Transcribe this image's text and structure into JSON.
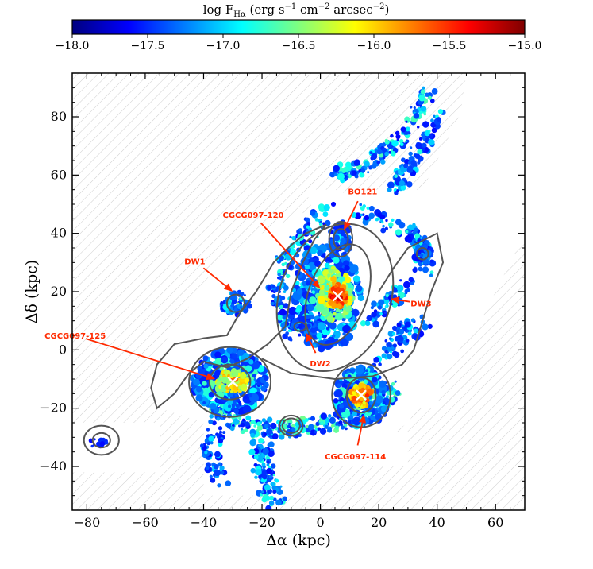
{
  "chart_data": {
    "type": "heatmap",
    "title": "",
    "colorbar": {
      "label_main": "log F",
      "label_sub": "Hα",
      "label_rest": " (erg s",
      "label_sup1": "−1",
      "label_mid": " cm",
      "label_sup2": "−2",
      "label_mid2": " arcsec",
      "label_sup3": "−2",
      "label_end": ")",
      "range": [
        -18.0,
        -15.0
      ],
      "ticks": [
        "−18.0",
        "−17.5",
        "−17.0",
        "−16.5",
        "−16.0",
        "−15.5",
        "−15.0"
      ],
      "tick_values": [
        -18.0,
        -17.5,
        -17.0,
        -16.5,
        -16.0,
        -15.5,
        -15.0
      ],
      "colors": [
        "#00007f",
        "#0000ff",
        "#007fff",
        "#00ffff",
        "#7fff7f",
        "#ffff00",
        "#ff7f00",
        "#ff0000",
        "#7f0000"
      ]
    },
    "xlabel": "Δα (kpc)",
    "ylabel": "Δδ (kpc)",
    "xlim": [
      -85,
      70
    ],
    "ylim": [
      -55,
      95
    ],
    "xticks": [
      -80,
      -60,
      -40,
      -20,
      0,
      20,
      40,
      60
    ],
    "xtick_labels": [
      "−80",
      "−60",
      "−40",
      "−20",
      "0",
      "20",
      "40",
      "60"
    ],
    "yticks": [
      -40,
      -20,
      0,
      20,
      40,
      60,
      80
    ],
    "ytick_labels": [
      "−40",
      "−20",
      "0",
      "20",
      "40",
      "60",
      "80"
    ],
    "galaxies": [
      {
        "name": "CGCG097-120",
        "x": 6,
        "y": 18.5
      },
      {
        "name": "CGCG097-125",
        "x": -30,
        "y": -11
      },
      {
        "name": "CGCG097-114",
        "x": 14,
        "y": -15.5
      },
      {
        "name": "BO121",
        "x": 7,
        "y": 38
      },
      {
        "name": "DW1",
        "x": -28,
        "y": 16
      },
      {
        "name": "DW2",
        "x": -7,
        "y": 8
      },
      {
        "name": "DW3",
        "x": 25,
        "y": 17
      }
    ],
    "annotations": [
      {
        "text": "CGCG097-120",
        "x": -23,
        "y": 46.5,
        "ax": 0,
        "ay": 21
      },
      {
        "text": "BO121",
        "x": 14.5,
        "y": 54.5,
        "ax": 8,
        "ay": 41
      },
      {
        "text": "DW1",
        "x": -43,
        "y": 30.5,
        "ax": -30,
        "ay": 20
      },
      {
        "text": "DW2",
        "x": 0,
        "y": -4.5,
        "ax": -5,
        "ay": 6
      },
      {
        "text": "DW3",
        "x": 34.5,
        "y": 16,
        "ax": 24,
        "ay": 17.5
      },
      {
        "text": "CGCG097-125",
        "x": -84,
        "y": 5,
        "ax": -36,
        "ay": -10
      },
      {
        "text": "CGCG097-114",
        "x": 12,
        "y": -36.5,
        "ax": 15,
        "ay": -22
      }
    ],
    "grid": false,
    "annotation_color": "#ff2a00"
  }
}
